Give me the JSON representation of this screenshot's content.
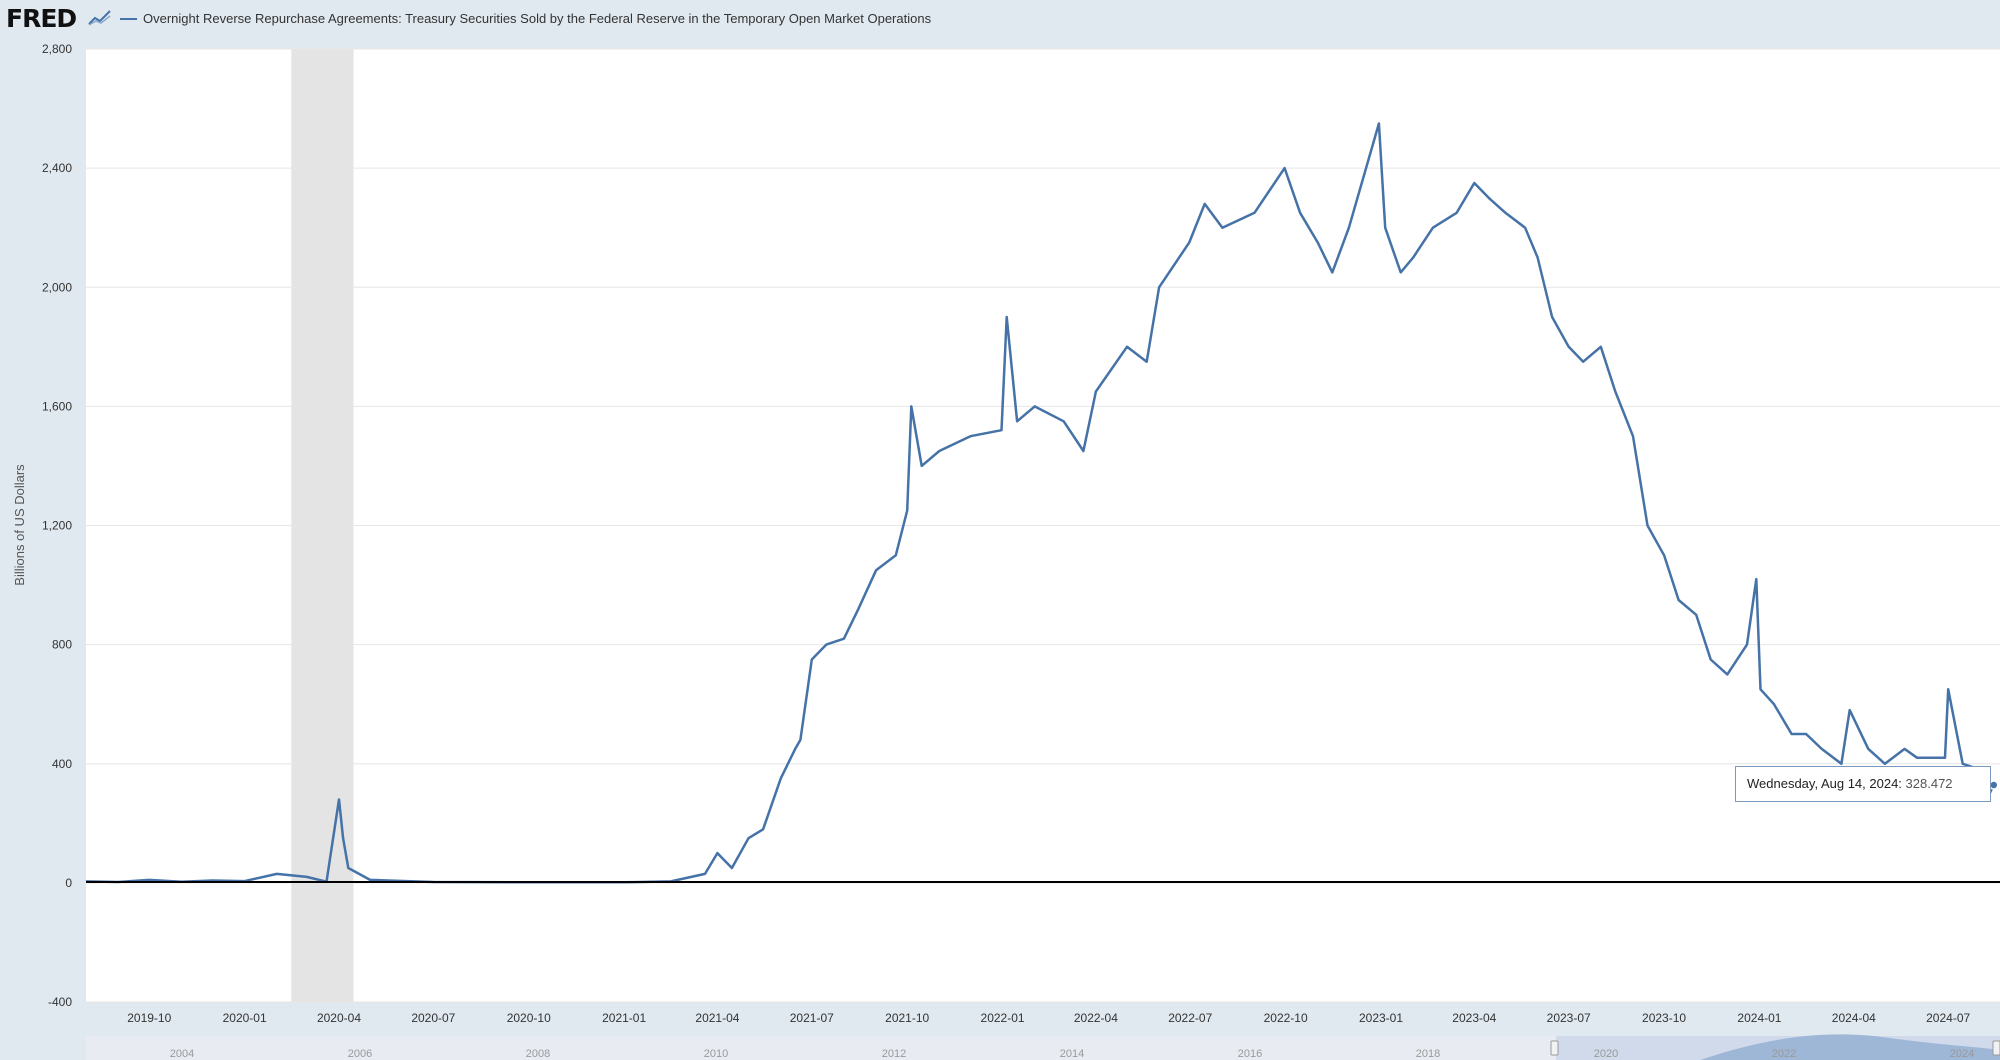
{
  "header": {
    "logo_text": "FRED",
    "logo_icon": "chart-line-icon",
    "series_title": "Overnight Reverse Repurchase Agreements: Treasury Securities Sold by the Federal Reserve in the Temporary Open Market Operations"
  },
  "tooltip": {
    "date": "Wednesday, Aug 14, 2024:",
    "value": "328.472"
  },
  "colors": {
    "series": "#4572a7",
    "recession": "#e4e4e4",
    "background": "#e1e9f0"
  },
  "chart_data": {
    "type": "line",
    "title": "",
    "ylabel": "Billions of US Dollars",
    "xlabel": "",
    "ylim": [
      -400,
      2800
    ],
    "yticks": [
      2800,
      2400,
      2000,
      1600,
      1200,
      800,
      400,
      0,
      -400
    ],
    "ytick_labels": [
      "2,800",
      "2,400",
      "2,000",
      "1,600",
      "1,200",
      "800",
      "400",
      "0",
      "-400"
    ],
    "xlim": [
      "2019-08-01",
      "2024-08-20"
    ],
    "xticks": [
      "2019-10-01",
      "2020-01-01",
      "2020-04-01",
      "2020-07-01",
      "2020-10-01",
      "2021-01-01",
      "2021-04-01",
      "2021-07-01",
      "2021-10-01",
      "2022-01-01",
      "2022-04-01",
      "2022-07-01",
      "2022-10-01",
      "2023-01-01",
      "2023-04-01",
      "2023-07-01",
      "2023-10-01",
      "2024-01-01",
      "2024-04-01",
      "2024-07-01"
    ],
    "xtick_labels": [
      "2019-10",
      "2020-01",
      "2020-04",
      "2020-07",
      "2020-10",
      "2021-01",
      "2021-04",
      "2021-07",
      "2021-10",
      "2022-01",
      "2022-04",
      "2022-07",
      "2022-10",
      "2023-01",
      "2023-04",
      "2023-07",
      "2023-10",
      "2024-01",
      "2024-04",
      "2024-07"
    ],
    "recession": {
      "start": "2020-02-15",
      "end": "2020-04-15"
    },
    "grid": true,
    "series": [
      {
        "x": [
          "2019-08-01",
          "2019-09-01",
          "2019-10-01",
          "2019-11-01",
          "2019-12-01",
          "2020-01-01",
          "2020-02-01",
          "2020-03-01",
          "2020-03-20",
          "2020-04-01",
          "2020-04-05",
          "2020-04-10",
          "2020-05-01",
          "2020-07-01",
          "2020-10-01",
          "2021-01-01",
          "2021-02-15",
          "2021-03-20",
          "2021-04-01",
          "2021-04-15",
          "2021-05-01",
          "2021-05-15",
          "2021-06-01",
          "2021-06-15",
          "2021-06-20",
          "2021-07-01",
          "2021-07-15",
          "2021-08-01",
          "2021-08-15",
          "2021-09-01",
          "2021-09-20",
          "2021-10-01",
          "2021-10-05",
          "2021-10-15",
          "2021-11-01",
          "2021-12-01",
          "2021-12-31",
          "2022-01-05",
          "2022-01-15",
          "2022-02-01",
          "2022-03-01",
          "2022-03-20",
          "2022-04-01",
          "2022-05-01",
          "2022-05-20",
          "2022-06-01",
          "2022-06-30",
          "2022-07-15",
          "2022-08-01",
          "2022-09-01",
          "2022-09-30",
          "2022-10-15",
          "2022-11-01",
          "2022-11-15",
          "2022-12-01",
          "2022-12-30",
          "2023-01-05",
          "2023-01-20",
          "2023-02-01",
          "2023-02-20",
          "2023-03-15",
          "2023-04-01",
          "2023-04-15",
          "2023-05-01",
          "2023-05-20",
          "2023-06-01",
          "2023-06-15",
          "2023-07-01",
          "2023-07-15",
          "2023-08-01",
          "2023-08-15",
          "2023-09-01",
          "2023-09-15",
          "2023-10-01",
          "2023-10-15",
          "2023-11-01",
          "2023-11-15",
          "2023-12-01",
          "2023-12-20",
          "2023-12-29",
          "2024-01-02",
          "2024-01-15",
          "2024-02-01",
          "2024-02-15",
          "2024-03-01",
          "2024-03-20",
          "2024-03-28",
          "2024-04-15",
          "2024-05-01",
          "2024-05-20",
          "2024-06-01",
          "2024-06-28",
          "2024-07-01",
          "2024-07-15",
          "2024-08-01",
          "2024-08-10",
          "2024-08-14"
        ],
        "values": [
          5,
          3,
          10,
          4,
          8,
          6,
          30,
          20,
          4,
          280,
          150,
          50,
          10,
          3,
          2,
          2,
          5,
          30,
          100,
          50,
          150,
          180,
          350,
          450,
          480,
          750,
          800,
          820,
          920,
          1050,
          1100,
          1250,
          1600,
          1400,
          1450,
          1500,
          1520,
          1900,
          1550,
          1600,
          1550,
          1450,
          1650,
          1800,
          1750,
          2000,
          2150,
          2280,
          2200,
          2250,
          2400,
          2250,
          2150,
          2050,
          2200,
          2550,
          2200,
          2050,
          2100,
          2200,
          2250,
          2350,
          2300,
          2250,
          2200,
          2100,
          1900,
          1800,
          1750,
          1800,
          1650,
          1500,
          1200,
          1100,
          950,
          900,
          750,
          700,
          800,
          1020,
          650,
          600,
          500,
          500,
          450,
          400,
          580,
          450,
          400,
          450,
          420,
          420,
          650,
          400,
          380,
          300,
          328.472
        ]
      }
    ]
  },
  "navigator": {
    "tick_labels": [
      "2004",
      "2006",
      "2008",
      "2010",
      "2012",
      "2014",
      "2016",
      "2018",
      "2020",
      "2022",
      "2024"
    ]
  }
}
